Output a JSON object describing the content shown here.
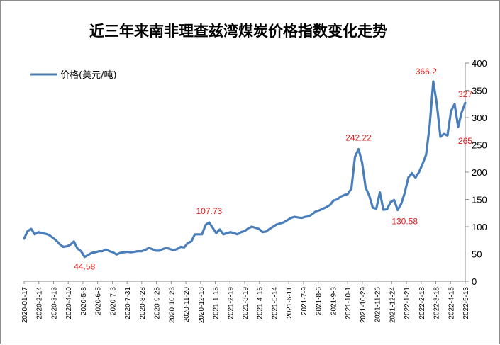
{
  "chart_data": {
    "type": "line",
    "title": "近三年来南非理查兹湾煤炭价格指数变化走势",
    "xlabel": "",
    "ylabel": "",
    "ylim": [
      0,
      400
    ],
    "yticks": [
      0,
      50,
      100,
      150,
      200,
      250,
      300,
      350,
      400
    ],
    "y_axis_side": "right",
    "grid": false,
    "legend_position": "top-left",
    "line_color": "#4a7ebb",
    "label_color": "#e02020",
    "x_tick_labels": [
      "2020-01-17",
      "2020-2-14",
      "2020-3-13",
      "2020-4-10",
      "2020-5-8",
      "2020-6-5",
      "2020-7-3",
      "2020-7-31",
      "2020-8-28",
      "2020-9-25",
      "2020-10-23",
      "2020-11-20",
      "2020-12-18",
      "2021-1-15",
      "2021-2-19",
      "2021-3-19",
      "2021-4-16",
      "2021-5-14",
      "2021-6-11",
      "2021-7-9",
      "2021-8-6",
      "2021-9-3",
      "2021-10-1",
      "2021-10-29",
      "2021-11-26",
      "2021-12-24",
      "2022-1-21",
      "2022-2-18",
      "2022-3-18",
      "2022-4-15",
      "2022-5-13"
    ],
    "series": [
      {
        "name": "价格(美元/吨)",
        "values": [
          78,
          92,
          96,
          86,
          90,
          88,
          87,
          85,
          80,
          75,
          68,
          63,
          64,
          67,
          73,
          60,
          55,
          44.58,
          48,
          52,
          53,
          55,
          55,
          58,
          55,
          53,
          49,
          52,
          53,
          54,
          53,
          54,
          55,
          55,
          57,
          61,
          59,
          56,
          56,
          59,
          61,
          59,
          57,
          59,
          63,
          62,
          70,
          73,
          86,
          86,
          86,
          103,
          107.73,
          98,
          88,
          95,
          86,
          88,
          90,
          88,
          86,
          90,
          92,
          97,
          100,
          98,
          96,
          90,
          91,
          96,
          100,
          104,
          106,
          108,
          112,
          116,
          118,
          117,
          116,
          118,
          119,
          123,
          128,
          130,
          133,
          136,
          140,
          148,
          150,
          155,
          158,
          160,
          170,
          228,
          242.22,
          218,
          172,
          157,
          135,
          133,
          163,
          131,
          132,
          145,
          149,
          130.58,
          142,
          162,
          190,
          198,
          190,
          200,
          215,
          232,
          285,
          366.2,
          325,
          265,
          270,
          267,
          312,
          325,
          283,
          310,
          327
        ]
      }
    ],
    "annotations": [
      "44.58",
      "107.73",
      "242.22",
      "130.58",
      "366.2",
      "265",
      "327"
    ]
  }
}
